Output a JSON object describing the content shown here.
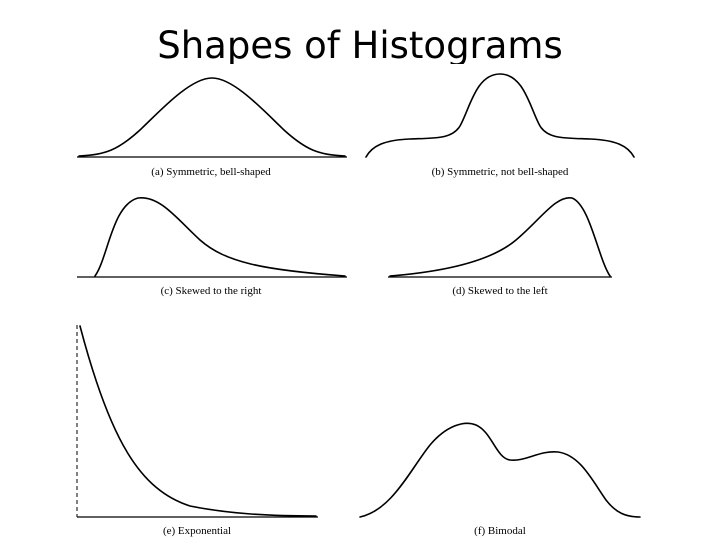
{
  "slide": {
    "title": "Shapes of Histograms"
  },
  "panels": [
    {
      "id": "a",
      "caption": "(a) Symmetric, bell-shaped"
    },
    {
      "id": "b",
      "caption": "(b) Symmetric, not bell-shaped"
    },
    {
      "id": "c",
      "caption": "(c) Skewed to the right"
    },
    {
      "id": "d",
      "caption": "(d) Skewed to the left"
    },
    {
      "id": "e",
      "caption": "(e) Exponential"
    },
    {
      "id": "f",
      "caption": "(f) Bimodal"
    }
  ]
}
